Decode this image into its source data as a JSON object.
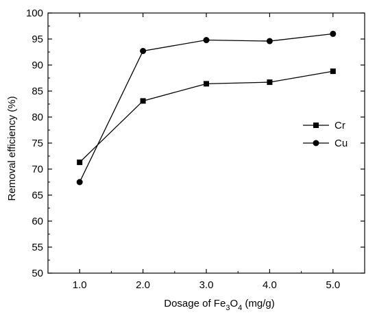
{
  "chart_data": {
    "type": "line",
    "title": "",
    "xlabel_parts": [
      "Dosage of Fe",
      "3",
      "O",
      "4",
      " (mg/g)"
    ],
    "ylabel": "Removal efficiency (%)",
    "x": [
      1.0,
      2.0,
      3.0,
      4.0,
      5.0
    ],
    "x_tick_labels": [
      "1.0",
      "2.0",
      "3.0",
      "4.0",
      "5.0"
    ],
    "xlim": [
      0.5,
      5.5
    ],
    "ylim": [
      50,
      100
    ],
    "y_ticks": [
      50,
      55,
      60,
      65,
      70,
      75,
      80,
      85,
      90,
      95,
      100
    ],
    "grid": false,
    "legend": "right",
    "series": [
      {
        "name": "Cr",
        "marker": "square",
        "values": [
          71.3,
          83.1,
          86.4,
          86.7,
          88.8
        ]
      },
      {
        "name": "Cu",
        "marker": "circle",
        "values": [
          67.5,
          92.7,
          94.8,
          94.6,
          96.0
        ]
      }
    ],
    "colors": {
      "line": "#000000",
      "marker": "#000000"
    }
  }
}
